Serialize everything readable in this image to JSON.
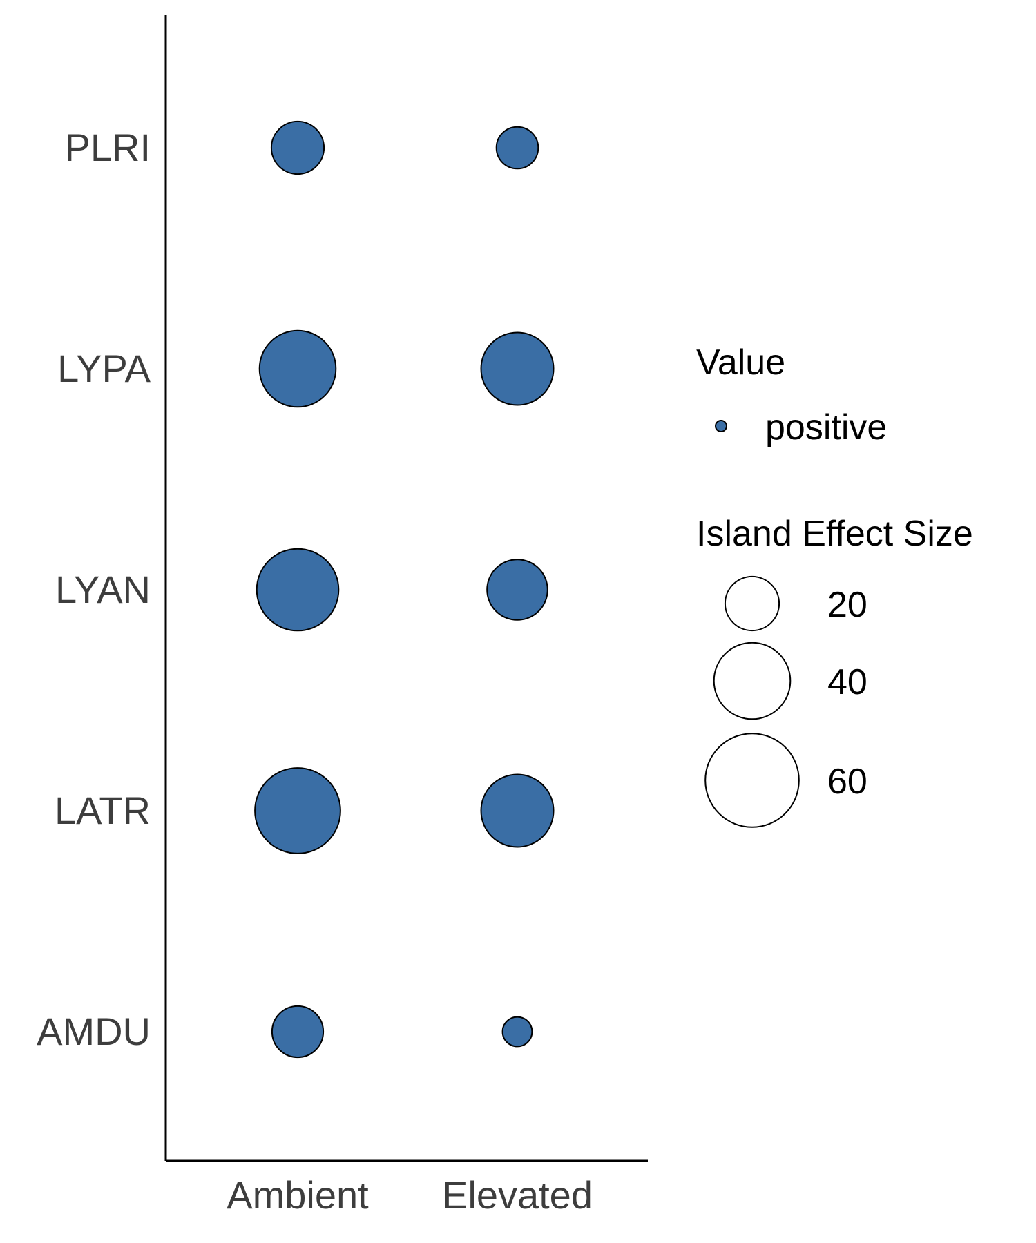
{
  "chart_data": {
    "type": "scatter",
    "x_categories": [
      "Ambient",
      "Elevated"
    ],
    "y_categories": [
      "PLRI",
      "LYPA",
      "LYAN",
      "LATR",
      "AMDU"
    ],
    "points": [
      {
        "x": "Ambient",
        "y": "PLRI",
        "size": 19,
        "value": "positive"
      },
      {
        "x": "Elevated",
        "y": "PLRI",
        "size": 12,
        "value": "positive"
      },
      {
        "x": "Ambient",
        "y": "LYPA",
        "size": 40,
        "value": "positive"
      },
      {
        "x": "Elevated",
        "y": "LYPA",
        "size": 36,
        "value": "positive"
      },
      {
        "x": "Ambient",
        "y": "LYAN",
        "size": 46,
        "value": "positive"
      },
      {
        "x": "Elevated",
        "y": "LYAN",
        "size": 25,
        "value": "positive"
      },
      {
        "x": "Ambient",
        "y": "LATR",
        "size": 50,
        "value": "positive"
      },
      {
        "x": "Elevated",
        "y": "LATR",
        "size": 36,
        "value": "positive"
      },
      {
        "x": "Ambient",
        "y": "AMDU",
        "size": 18,
        "value": "positive"
      },
      {
        "x": "Elevated",
        "y": "AMDU",
        "size": 6,
        "value": "positive"
      }
    ],
    "legend": {
      "color_title": "Value",
      "color_items": [
        {
          "label": "positive",
          "color": "#3a6ea5"
        }
      ],
      "size_title": "Island Effect Size",
      "size_items": [
        {
          "label": "20",
          "size": 20
        },
        {
          "label": "40",
          "size": 40
        },
        {
          "label": "60",
          "size": 60
        }
      ],
      "placement": "right"
    },
    "grid": false,
    "colors": {
      "fill": "#3a6ea5",
      "stroke": "#000000"
    }
  }
}
